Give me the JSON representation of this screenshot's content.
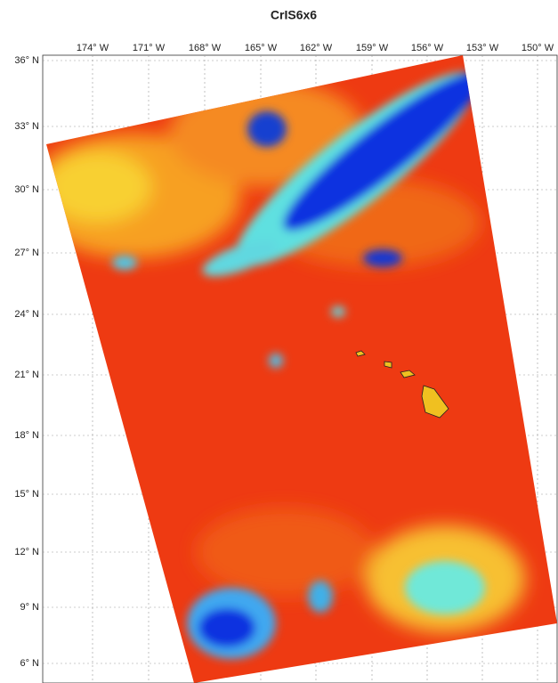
{
  "title": "CrIS6x6",
  "map": {
    "lon_labels": [
      "174° W",
      "171° W",
      "168° W",
      "165° W",
      "162° W",
      "159° W",
      "156° W",
      "153° W",
      "150° W"
    ],
    "lat_labels": [
      "36° N",
      "33° N",
      "30° N",
      "27° N",
      "24° N",
      "21° N",
      "18° N",
      "15° N",
      "12° N",
      "9° N",
      "6° N"
    ]
  }
}
